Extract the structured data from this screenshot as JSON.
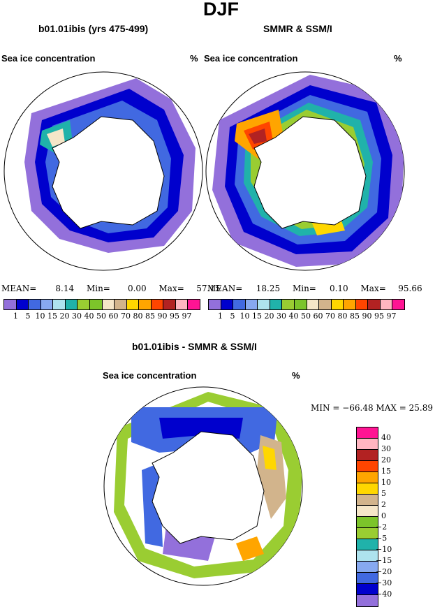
{
  "main_title": "DJF",
  "panels": [
    {
      "title": "b01.01ibis (yrs 475-499)",
      "variable": "Sea ice concentration",
      "units": "%",
      "stats": {
        "mean_label": "MEAN=",
        "mean": "8.14",
        "min_label": "Min=",
        "min": "0.00",
        "max_label": "Max=",
        "max": "57.15"
      }
    },
    {
      "title": "SMMR & SSM/I",
      "variable": "Sea ice concentration",
      "units": "%",
      "stats": {
        "mean_label": "MEAN=",
        "mean": "18.25",
        "min_label": "Min=",
        "min": "0.10",
        "max_label": "Max=",
        "max": "95.66"
      }
    }
  ],
  "conc_colorbar": {
    "levels": [
      "1",
      "5",
      "10",
      "15",
      "20",
      "30",
      "40",
      "50",
      "60",
      "70",
      "80",
      "85",
      "90",
      "95",
      "97"
    ],
    "colors": [
      "#9370DB",
      "#0000CD",
      "#4169E1",
      "#87A9F0",
      "#AEE3EE",
      "#20B2AA",
      "#9ACD32",
      "#7CC42A",
      "#F5E6C8",
      "#D2B48C",
      "#FFD700",
      "#FFA500",
      "#FF4500",
      "#B22222",
      "#FFB6C1",
      "#FF1493"
    ]
  },
  "diff_panel": {
    "title": "b01.01ibis - SMMR & SSM/I",
    "variable": "Sea ice concentration",
    "units": "%",
    "stats_text": "MIN = −66.48  MAX =  25.89"
  },
  "diff_colorbar": {
    "labels_top_to_bottom": [
      "40",
      "30",
      "20",
      "15",
      "10",
      "5",
      "2",
      "0",
      "−2",
      "−5",
      "−10",
      "−15",
      "−20",
      "−30",
      "−40"
    ],
    "colors_top_to_bottom": [
      "#FF1493",
      "#FFB6C1",
      "#B22222",
      "#FF4500",
      "#FFA500",
      "#FFD700",
      "#D2B48C",
      "#F5E6C8",
      "#7CC42A",
      "#9ACD32",
      "#20B2AA",
      "#AEE3EE",
      "#87A9F0",
      "#4169E1",
      "#0000CD",
      "#9370DB"
    ]
  }
}
